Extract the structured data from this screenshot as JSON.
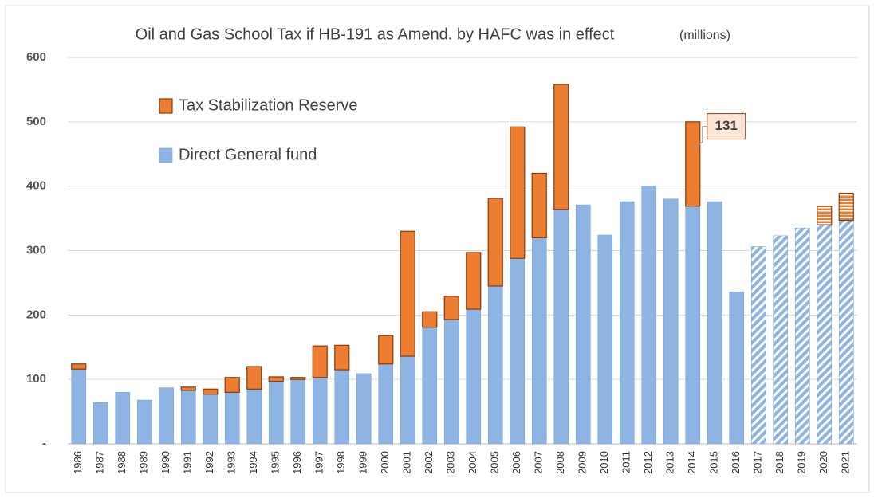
{
  "chart_data": {
    "type": "stacked_bar",
    "title": "Oil and Gas School Tax if HB-191 as Amend. by HAFC was in effect",
    "subtitle": "(millions)",
    "categories": [
      "1986",
      "1987",
      "1988",
      "1989",
      "1990",
      "1991",
      "1992",
      "1993",
      "1994",
      "1995",
      "1996",
      "1997",
      "1998",
      "1999",
      "2000",
      "2001",
      "2002",
      "2003",
      "2004",
      "2005",
      "2006",
      "2007",
      "2008",
      "2009",
      "2010",
      "2011",
      "2012",
      "2013",
      "2014",
      "2015",
      "2016",
      "2017",
      "2018",
      "2019",
      "2020",
      "2021"
    ],
    "series": [
      {
        "name": "Direct General fund",
        "color": "#8db4e2",
        "stroke": "#7aa6d8",
        "values": [
          116,
          64,
          80,
          68,
          87,
          83,
          77,
          80,
          85,
          97,
          100,
          103,
          115,
          109,
          124,
          136,
          181,
          193,
          209,
          245,
          288,
          320,
          364,
          371,
          324,
          376,
          400,
          380,
          369,
          376,
          236,
          306,
          323,
          335,
          340,
          347
        ],
        "patterns": [
          "solid",
          "solid",
          "solid",
          "solid",
          "solid",
          "solid",
          "solid",
          "solid",
          "solid",
          "solid",
          "solid",
          "solid",
          "solid",
          "solid",
          "solid",
          "solid",
          "solid",
          "solid",
          "solid",
          "solid",
          "solid",
          "solid",
          "solid",
          "solid",
          "solid",
          "solid",
          "solid",
          "solid",
          "solid",
          "solid",
          "solid",
          "hatched",
          "hatched",
          "hatched",
          "hatched",
          "hatched"
        ]
      },
      {
        "name": "Tax Stabilization Reserve",
        "color": "#ed7d31",
        "stroke": "#843c0c",
        "values": [
          8,
          null,
          null,
          null,
          null,
          5,
          8,
          23,
          35,
          7,
          3,
          49,
          38,
          null,
          44,
          194,
          24,
          36,
          88,
          136,
          204,
          100,
          194,
          null,
          null,
          null,
          null,
          null,
          131,
          null,
          null,
          null,
          null,
          null,
          29,
          42
        ],
        "value_labels": [
          null,
          null,
          null,
          null,
          null,
          null,
          null,
          null,
          null,
          null,
          null,
          null,
          null,
          null,
          null,
          null,
          null,
          null,
          null,
          null,
          null,
          null,
          null,
          null,
          null,
          null,
          null,
          null,
          "131",
          null,
          null,
          null,
          null,
          null,
          null,
          null
        ],
        "patterns": [
          "solid",
          "solid",
          "solid",
          "solid",
          "solid",
          "solid",
          "solid",
          "solid",
          "solid",
          "solid",
          "solid",
          "solid",
          "solid",
          "solid",
          "solid",
          "solid",
          "solid",
          "solid",
          "solid",
          "solid",
          "solid",
          "solid",
          "solid",
          "solid",
          "solid",
          "solid",
          "solid",
          "solid",
          "solid",
          "solid",
          "solid",
          "solid",
          "solid",
          "solid",
          "hatched",
          "hatched"
        ]
      }
    ],
    "ylim": [
      0,
      600
    ],
    "yticks": [
      {
        "value": 0,
        "label": "-"
      },
      100,
      200,
      300,
      400,
      500,
      600
    ],
    "grid": true,
    "legend": "top-left"
  }
}
